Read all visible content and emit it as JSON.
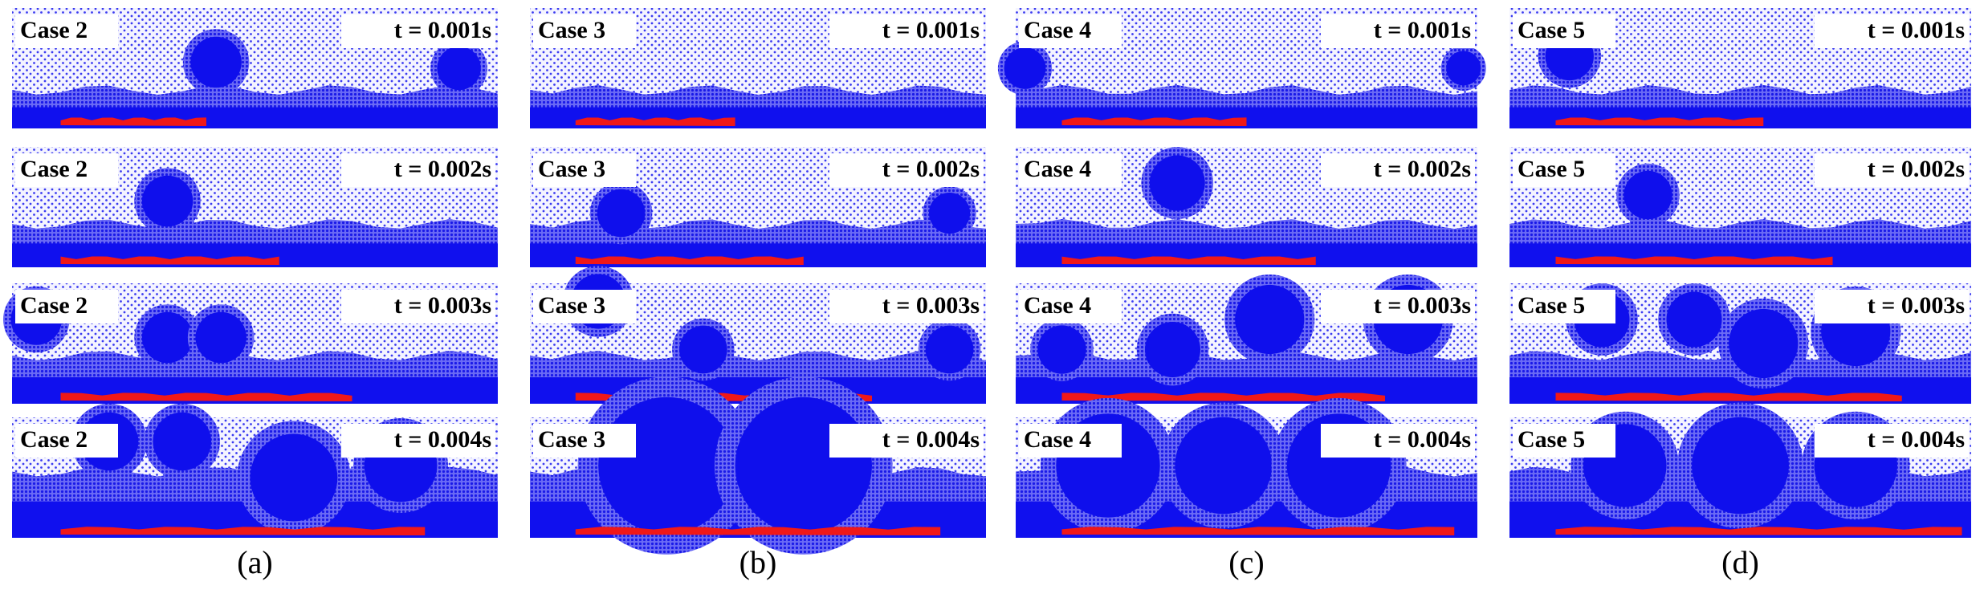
{
  "figure": {
    "columns": [
      {
        "caption": "(a)",
        "panels": [
          {
            "case": "Case 2",
            "time": "t = 0.001s"
          },
          {
            "case": "Case 2",
            "time": "t = 0.002s"
          },
          {
            "case": "Case 2",
            "time": "t = 0.003s"
          },
          {
            "case": "Case 2",
            "time": "t = 0.004s"
          }
        ]
      },
      {
        "caption": "(b)",
        "panels": [
          {
            "case": "Case 3",
            "time": "t = 0.001s"
          },
          {
            "case": "Case 3",
            "time": "t = 0.002s"
          },
          {
            "case": "Case 3",
            "time": "t = 0.003s"
          },
          {
            "case": "Case 3",
            "time": "t = 0.004s"
          }
        ]
      },
      {
        "caption": "(c)",
        "panels": [
          {
            "case": "Case 4",
            "time": "t = 0.001s"
          },
          {
            "case": "Case 4",
            "time": "t = 0.002s"
          },
          {
            "case": "Case 4",
            "time": "t = 0.003s"
          },
          {
            "case": "Case 4",
            "time": "t = 0.004s"
          }
        ]
      },
      {
        "caption": "(d)",
        "panels": [
          {
            "case": "Case 5",
            "time": "t = 0.001s"
          },
          {
            "case": "Case 5",
            "time": "t = 0.002s"
          },
          {
            "case": "Case 5",
            "time": "t = 0.003s"
          },
          {
            "case": "Case 5",
            "time": "t = 0.004s"
          }
        ]
      }
    ]
  }
}
